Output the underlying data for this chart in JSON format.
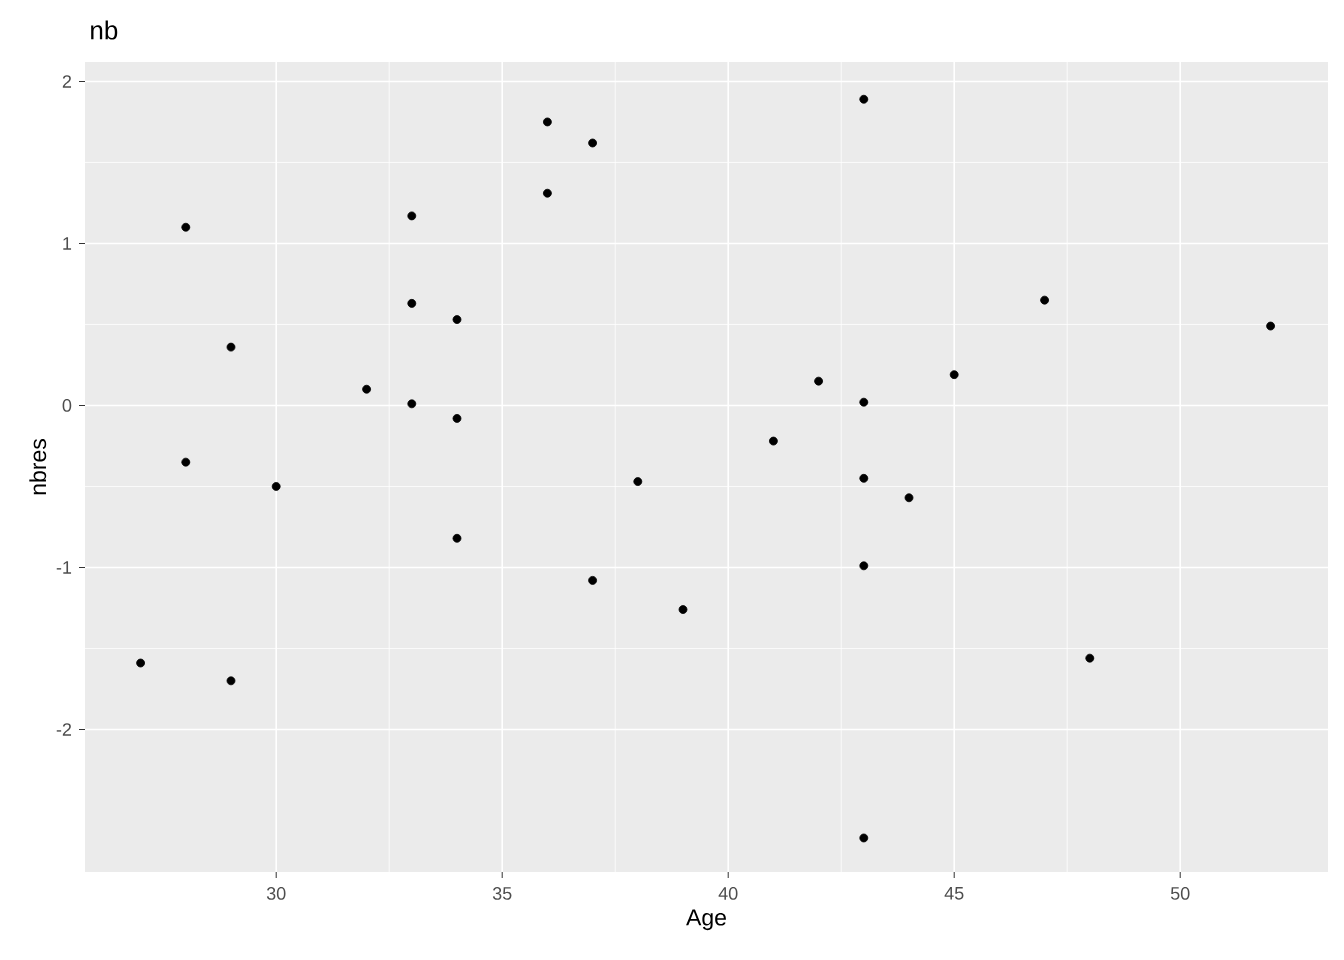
{
  "chart_data": {
    "type": "scatter",
    "title": "nb",
    "xlabel": "Age",
    "ylabel": "nbres",
    "x": [
      27,
      28,
      28,
      29,
      29,
      30,
      32,
      33,
      33,
      33,
      34,
      34,
      34,
      36,
      36,
      37,
      37,
      38,
      39,
      41,
      42,
      43,
      43,
      43,
      43,
      43,
      44,
      45,
      47,
      48,
      52
    ],
    "values": [
      -1.59,
      1.1,
      -0.35,
      0.36,
      -1.7,
      -0.5,
      0.1,
      1.17,
      0.63,
      0.01,
      0.53,
      -0.08,
      -0.82,
      1.75,
      1.31,
      1.62,
      -1.08,
      -0.47,
      -1.26,
      -0.22,
      0.15,
      1.89,
      0.02,
      -0.45,
      -0.99,
      -2.67,
      -0.57,
      0.19,
      0.65,
      -1.56,
      0.49
    ],
    "color": "#000000",
    "marker": "circle",
    "grid": true,
    "xlim": [
      25.77,
      53.27
    ],
    "ylim": [
      -2.88,
      2.12
    ],
    "xticks": [
      30,
      35,
      40,
      45,
      50
    ],
    "yticks": [
      -2,
      -1,
      0,
      1,
      2
    ]
  }
}
